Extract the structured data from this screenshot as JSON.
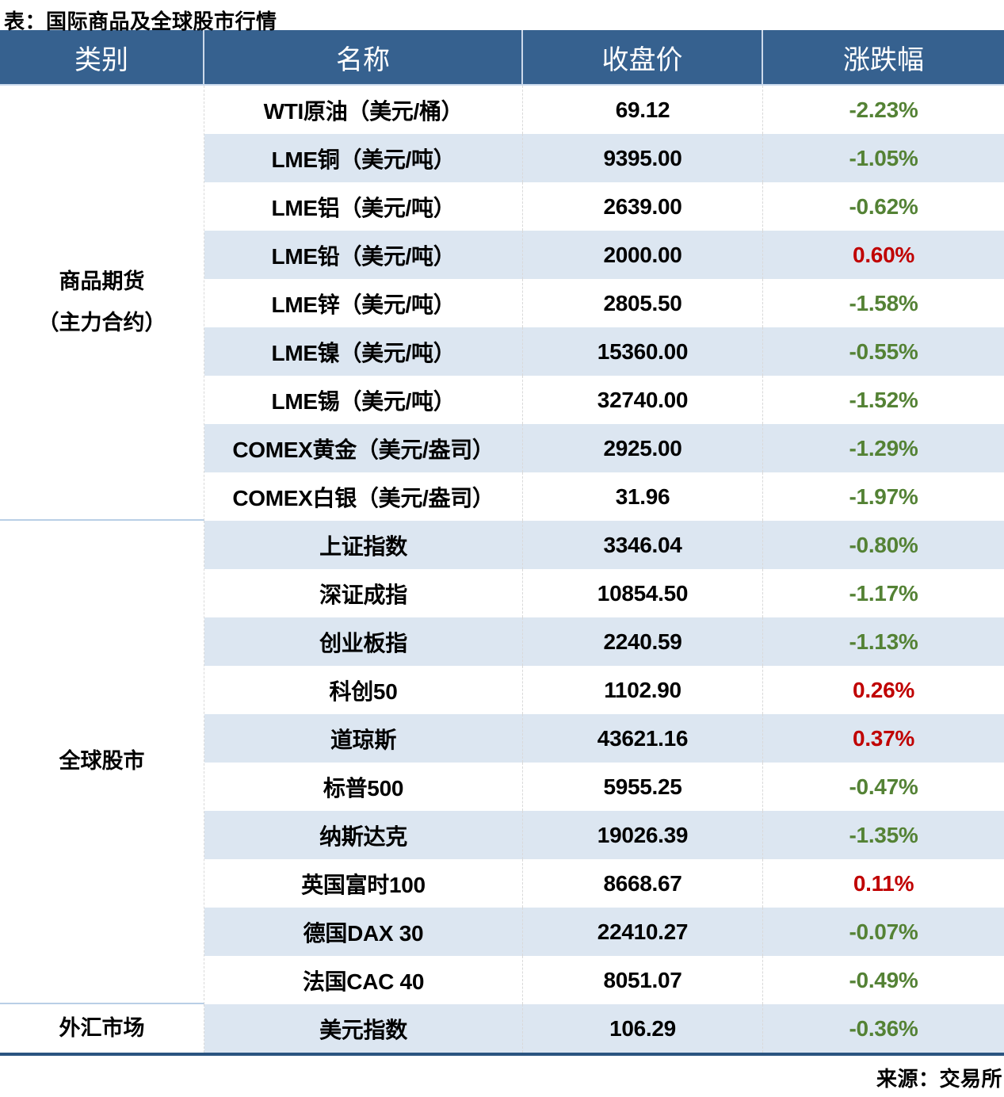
{
  "title": "表：国际商品及全球股市行情",
  "source": "来源：交易所",
  "colors": {
    "header_bg": "#36618f",
    "stripe_bg": "#dce6f1",
    "positive_change": "#c00000",
    "negative_change": "#548235",
    "bottom_border": "#2a5480"
  },
  "table": {
    "headers": [
      "类别",
      "名称",
      "收盘价",
      "涨跌幅"
    ],
    "sections": [
      {
        "label": "商品期货\n（主力合约）",
        "rows": 9
      },
      {
        "label": "全球股市",
        "rows": 10
      },
      {
        "label": "外汇市场",
        "rows": 1
      }
    ],
    "rows": [
      {
        "name": "WTI原油（美元/桶）",
        "close": "69.12",
        "change": "-2.23%"
      },
      {
        "name": "LME铜（美元/吨）",
        "close": "9395.00",
        "change": "-1.05%"
      },
      {
        "name": "LME铝（美元/吨）",
        "close": "2639.00",
        "change": "-0.62%"
      },
      {
        "name": "LME铅（美元/吨）",
        "close": "2000.00",
        "change": "0.60%"
      },
      {
        "name": "LME锌（美元/吨）",
        "close": "2805.50",
        "change": "-1.58%"
      },
      {
        "name": "LME镍（美元/吨）",
        "close": "15360.00",
        "change": "-0.55%"
      },
      {
        "name": "LME锡（美元/吨）",
        "close": "32740.00",
        "change": "-1.52%"
      },
      {
        "name": "COMEX黄金（美元/盎司）",
        "close": "2925.00",
        "change": "-1.29%"
      },
      {
        "name": "COMEX白银（美元/盎司）",
        "close": "31.96",
        "change": "-1.97%"
      },
      {
        "name": "上证指数",
        "close": "3346.04",
        "change": "-0.80%"
      },
      {
        "name": "深证成指",
        "close": "10854.50",
        "change": "-1.17%"
      },
      {
        "name": "创业板指",
        "close": "2240.59",
        "change": "-1.13%"
      },
      {
        "name": "科创50",
        "close": "1102.90",
        "change": "0.26%"
      },
      {
        "name": "道琼斯",
        "close": "43621.16",
        "change": "0.37%"
      },
      {
        "name": "标普500",
        "close": "5955.25",
        "change": "-0.47%"
      },
      {
        "name": "纳斯达克",
        "close": "19026.39",
        "change": "-1.35%"
      },
      {
        "name": "英国富时100",
        "close": "8668.67",
        "change": "0.11%"
      },
      {
        "name": "德国DAX 30",
        "close": "22410.27",
        "change": "-0.07%"
      },
      {
        "name": "法国CAC 40",
        "close": "8051.07",
        "change": "-0.49%"
      },
      {
        "name": "美元指数",
        "close": "106.29",
        "change": "-0.36%"
      }
    ]
  },
  "chart_data": {
    "type": "table",
    "title": "表：国际商品及全球股市行情",
    "columns": [
      "类别",
      "名称",
      "收盘价",
      "涨跌幅"
    ],
    "rows": [
      [
        "商品期货（主力合约）",
        "WTI原油（美元/桶）",
        69.12,
        "-2.23%"
      ],
      [
        "商品期货（主力合约）",
        "LME铜（美元/吨）",
        9395.0,
        "-1.05%"
      ],
      [
        "商品期货（主力合约）",
        "LME铝（美元/吨）",
        2639.0,
        "-0.62%"
      ],
      [
        "商品期货（主力合约）",
        "LME铅（美元/吨）",
        2000.0,
        "0.60%"
      ],
      [
        "商品期货（主力合约）",
        "LME锌（美元/吨）",
        2805.5,
        "-1.58%"
      ],
      [
        "商品期货（主力合约）",
        "LME镍（美元/吨）",
        15360.0,
        "-0.55%"
      ],
      [
        "商品期货（主力合约）",
        "LME锡（美元/吨）",
        32740.0,
        "-1.52%"
      ],
      [
        "商品期货（主力合约）",
        "COMEX黄金（美元/盎司）",
        2925.0,
        "-1.29%"
      ],
      [
        "商品期货（主力合约）",
        "COMEX白银（美元/盎司）",
        31.96,
        "-1.97%"
      ],
      [
        "全球股市",
        "上证指数",
        3346.04,
        "-0.80%"
      ],
      [
        "全球股市",
        "深证成指",
        10854.5,
        "-1.17%"
      ],
      [
        "全球股市",
        "创业板指",
        2240.59,
        "-1.13%"
      ],
      [
        "全球股市",
        "科创50",
        1102.9,
        "0.26%"
      ],
      [
        "全球股市",
        "道琼斯",
        43621.16,
        "0.37%"
      ],
      [
        "全球股市",
        "标普500",
        5955.25,
        "-0.47%"
      ],
      [
        "全球股市",
        "纳斯达克",
        19026.39,
        "-1.35%"
      ],
      [
        "全球股市",
        "英国富时100",
        8668.67,
        "0.11%"
      ],
      [
        "全球股市",
        "德国DAX 30",
        22410.27,
        "-0.07%"
      ],
      [
        "全球股市",
        "法国CAC 40",
        8051.07,
        "-0.49%"
      ],
      [
        "外汇市场",
        "美元指数",
        106.29,
        "-0.36%"
      ]
    ],
    "source": "来源：交易所",
    "notes": "negative changes rendered green (#548235), positive changes rendered red (#c00000); alternating white/#dce6f1 row stripes; dark blue header #36618f"
  }
}
